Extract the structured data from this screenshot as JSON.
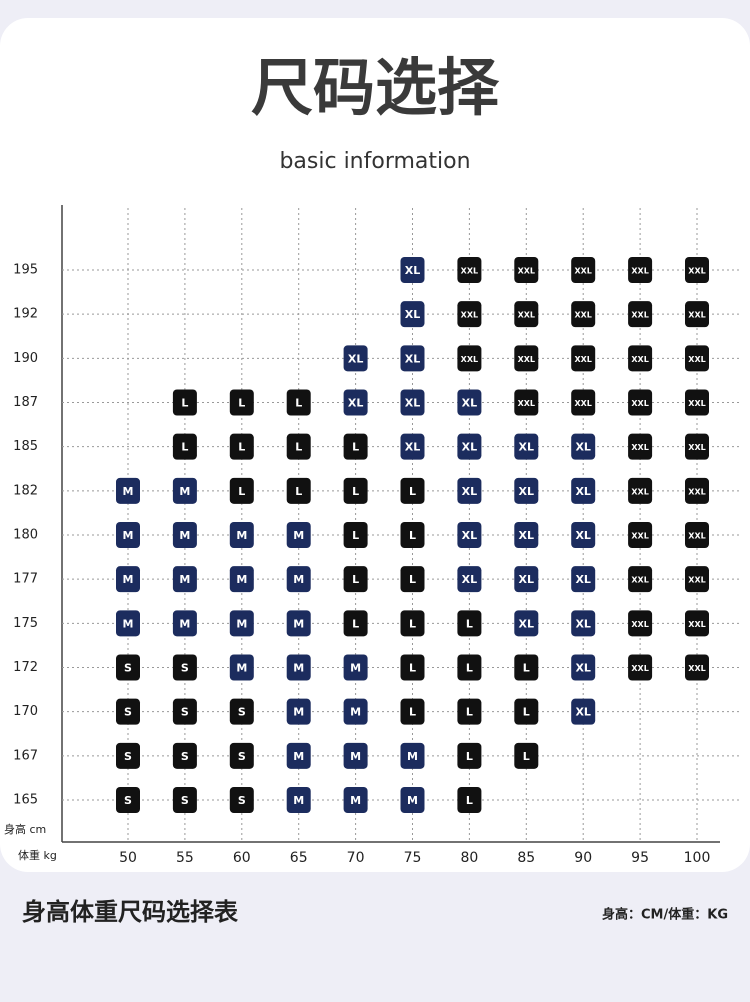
{
  "header": {
    "title": "尺码选择",
    "subtitle": "basic information"
  },
  "grid": {
    "y_axis_label": "身高 cm",
    "x_axis_label": "体重 kg",
    "heights": [
      195,
      192,
      190,
      187,
      185,
      182,
      180,
      177,
      175,
      172,
      170,
      167,
      165
    ],
    "weights": [
      50,
      55,
      60,
      65,
      70,
      75,
      80,
      85,
      90,
      95,
      100
    ],
    "rows": [
      [
        null,
        null,
        null,
        null,
        null,
        "XL",
        "XXL",
        "XXL",
        "XXL",
        "XXL",
        "XXL"
      ],
      [
        null,
        null,
        null,
        null,
        null,
        "XL",
        "XXL",
        "XXL",
        "XXL",
        "XXL",
        "XXL"
      ],
      [
        null,
        null,
        null,
        null,
        "XL",
        "XL",
        "XXL",
        "XXL",
        "XXL",
        "XXL",
        "XXL"
      ],
      [
        null,
        "L",
        "L",
        "L",
        "XL",
        "XL",
        "XL",
        "XXL",
        "XXL",
        "XXL",
        "XXL"
      ],
      [
        null,
        "L",
        "L",
        "L",
        "L",
        "XL",
        "XL",
        "XL",
        "XL",
        "XXL",
        "XXL"
      ],
      [
        "M",
        "M",
        "L",
        "L",
        "L",
        "L",
        "XL",
        "XL",
        "XL",
        "XXL",
        "XXL"
      ],
      [
        "M",
        "M",
        "M",
        "M",
        "L",
        "L",
        "XL",
        "XL",
        "XL",
        "XXL",
        "XXL"
      ],
      [
        "M",
        "M",
        "M",
        "M",
        "L",
        "L",
        "XL",
        "XL",
        "XL",
        "XXL",
        "XXL"
      ],
      [
        "M",
        "M",
        "M",
        "M",
        "L",
        "L",
        "L",
        "XL",
        "XL",
        "XXL",
        "XXL"
      ],
      [
        "S",
        "S",
        "M",
        "M",
        "M",
        "L",
        "L",
        "L",
        "XL",
        "XXL",
        "XXL"
      ],
      [
        "S",
        "S",
        "S",
        "M",
        "M",
        "L",
        "L",
        "L",
        "XL",
        null,
        null
      ],
      [
        "S",
        "S",
        "S",
        "M",
        "M",
        "M",
        "L",
        "L",
        null,
        null,
        null
      ],
      [
        "S",
        "S",
        "S",
        "M",
        "M",
        "M",
        "L",
        null,
        null,
        null,
        null
      ]
    ],
    "badge_colors": {
      "S": "#111111",
      "M": "#1c2c5e",
      "L": "#111111",
      "XL": "#1c2c5e",
      "XXL": "#111111"
    }
  },
  "footer": {
    "title": "身高体重尺码选择表",
    "note": "身高：CM/体重：KG"
  }
}
